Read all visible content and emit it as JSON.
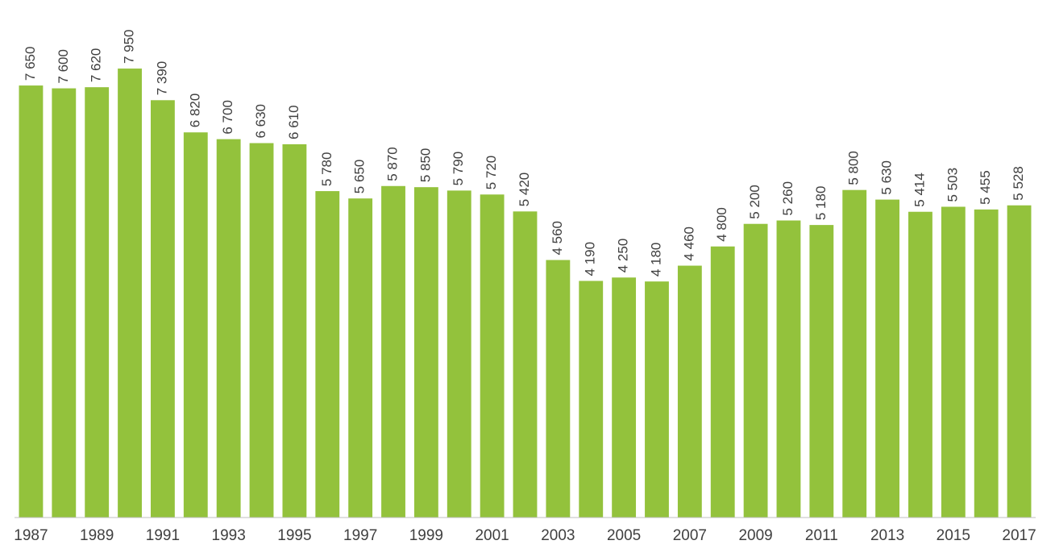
{
  "chart_data": {
    "type": "bar",
    "categories": [
      "1987",
      null,
      "1989",
      null,
      "1991",
      null,
      "1993",
      null,
      "1995",
      null,
      "1997",
      null,
      "1999",
      null,
      "2001",
      null,
      "2003",
      null,
      "2005",
      null,
      "2007",
      null,
      "2009",
      null,
      "2011",
      null,
      "2013",
      null,
      "2015",
      null,
      "2017"
    ],
    "values": [
      7650,
      7600,
      7620,
      7950,
      7390,
      6820,
      6700,
      6630,
      6610,
      5780,
      5650,
      5870,
      5850,
      5790,
      5720,
      5420,
      4560,
      4190,
      4250,
      4180,
      4460,
      4800,
      5200,
      5260,
      5180,
      5800,
      5630,
      5414,
      5503,
      5455,
      5528
    ],
    "value_labels": [
      "7 650",
      "7 600",
      "7 620",
      "7 950",
      "7 390",
      "6 820",
      "6 700",
      "6 630",
      "6 610",
      "5 780",
      "5 650",
      "5 870",
      "5 850",
      "5 790",
      "5 720",
      "5 420",
      "4 560",
      "4 190",
      "4 250",
      "4 180",
      "4 460",
      "4 800",
      "5 200",
      "5 260",
      "5 180",
      "5 800",
      "5 630",
      "5 414",
      "5 503",
      "5 455",
      "5 528"
    ],
    "color": "#93c23c",
    "ylim": [
      0,
      9000
    ]
  }
}
